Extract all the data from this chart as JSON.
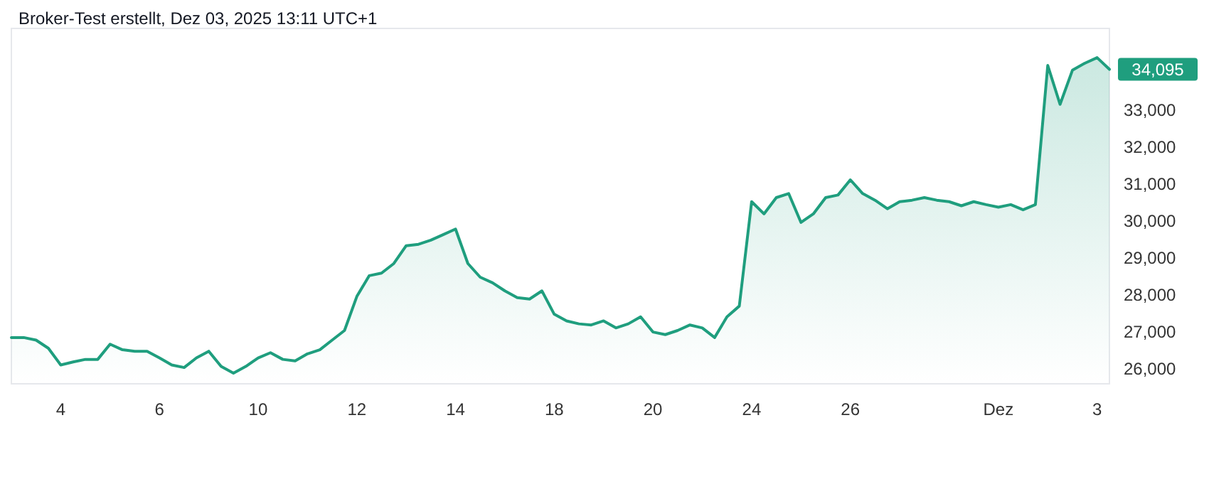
{
  "chart_data": {
    "type": "area",
    "title": "Broker-Test erstellt, Dez 03, 2025 13:11 UTC+1",
    "categories": [
      null,
      null,
      null,
      null,
      "4",
      null,
      null,
      null,
      null,
      null,
      null,
      null,
      "6",
      null,
      null,
      null,
      null,
      null,
      null,
      null,
      "10",
      null,
      null,
      null,
      null,
      null,
      null,
      null,
      "12",
      null,
      null,
      null,
      null,
      null,
      null,
      null,
      "14",
      null,
      null,
      null,
      null,
      null,
      null,
      null,
      "18",
      null,
      null,
      null,
      null,
      null,
      null,
      null,
      "20",
      null,
      null,
      null,
      null,
      null,
      null,
      null,
      "24",
      null,
      null,
      null,
      null,
      null,
      null,
      null,
      "26",
      null,
      null,
      null,
      null,
      null,
      null,
      null,
      null,
      null,
      null,
      null,
      "Dez",
      null,
      null,
      null,
      null,
      null,
      null,
      null,
      "3",
      null
    ],
    "series": [
      {
        "color": "#1f9e7e",
        "values": [
          26850,
          26850,
          26780,
          26560,
          26110,
          26190,
          26260,
          26260,
          26670,
          26520,
          26480,
          26480,
          26300,
          26110,
          26040,
          26300,
          26480,
          26070,
          25890,
          26070,
          26300,
          26440,
          26260,
          26220,
          26410,
          26520,
          26780,
          27040,
          27960,
          28520,
          28590,
          28850,
          29330,
          29370,
          29480,
          29630,
          29780,
          28850,
          28480,
          28330,
          28110,
          27930,
          27890,
          28110,
          27480,
          27300,
          27220,
          27190,
          27300,
          27110,
          27220,
          27410,
          27000,
          26930,
          27040,
          27190,
          27110,
          26850,
          27410,
          27700,
          30520,
          30190,
          30630,
          30740,
          29960,
          30190,
          30630,
          30700,
          31110,
          30740,
          30560,
          30330,
          30520,
          30560,
          30630,
          30560,
          30520,
          30410,
          30520,
          30440,
          30370,
          30440,
          30300,
          30440,
          34200,
          33150,
          34070,
          34260,
          34410,
          34095
        ]
      }
    ],
    "ylim": [
      25600,
      35200
    ],
    "yticks": [
      {
        "value": 26000,
        "label": "26,000"
      },
      {
        "value": 27000,
        "label": "27,000"
      },
      {
        "value": 28000,
        "label": "28,000"
      },
      {
        "value": 29000,
        "label": "29,000"
      },
      {
        "value": 30000,
        "label": "30,000"
      },
      {
        "value": 31000,
        "label": "31,000"
      },
      {
        "value": 32000,
        "label": "32,000"
      },
      {
        "value": 33000,
        "label": "33,000"
      }
    ],
    "annotations": [
      "34,095"
    ],
    "marker": "none",
    "line_style": "solid"
  }
}
